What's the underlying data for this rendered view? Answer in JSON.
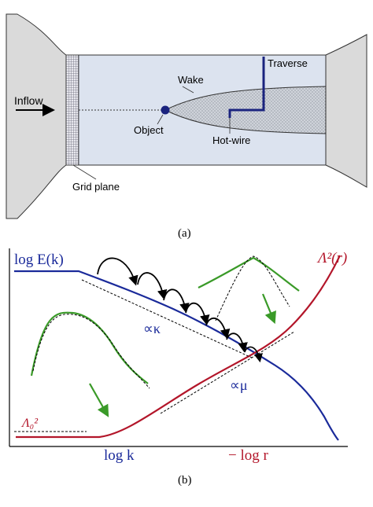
{
  "panel_a": {
    "caption": "(a)",
    "labels": {
      "inflow": "Inflow",
      "wake": "Wake",
      "traverse": "Traverse",
      "object": "Object",
      "hot_wire": "Hot-wire",
      "grid_plane": "Grid plane"
    }
  },
  "panel_b": {
    "caption": "(b)",
    "labels": {
      "log_E_k": "log E(k)",
      "lambda_r": "Λ²(r)",
      "lambda_0": "Λ₀²",
      "prop_kappa": "∝κ",
      "prop_mu": "∝μ",
      "x_log_k": "log k",
      "x_minus_log_r": "− log r"
    }
  },
  "colors": {
    "tunnel_body": "#dadada",
    "test_section": "#dce3ef",
    "blue_curve": "#1a2a9a",
    "red_curve": "#b3162a",
    "green": "#3a9a28",
    "traverse": "#1a237e",
    "object": "#1a237e"
  }
}
